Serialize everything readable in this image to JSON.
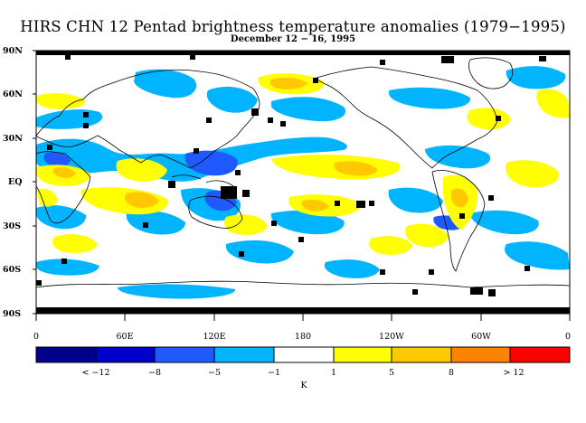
{
  "header": {
    "title": "HIRS CHN 12 Pentad brightness temperature anomalies (1979−1995)",
    "subtitle": "December 12 − 16, 1995"
  },
  "map": {
    "lat_labels": [
      "90N",
      "60N",
      "30N",
      "EQ",
      "30S",
      "60S",
      "90S"
    ],
    "lon_labels": [
      "0",
      "60E",
      "120E",
      "180",
      "120W",
      "60W",
      "0"
    ],
    "colors": {
      "ocean_bg": "#ffffff",
      "coastline": "#000000",
      "missing_data": "#000000"
    }
  },
  "colorbar": {
    "bins": [
      {
        "color": "#00008c"
      },
      {
        "color": "#0000cd"
      },
      {
        "color": "#1e5aff"
      },
      {
        "color": "#00b4ff"
      },
      {
        "color": "#ffffff"
      },
      {
        "color": "#ffff00"
      },
      {
        "color": "#ffc800"
      },
      {
        "color": "#ff8200"
      },
      {
        "color": "#ff0000"
      }
    ],
    "labels": [
      "< −12",
      "−8",
      "−5",
      "−1",
      "1",
      "5",
      "8",
      "> 12"
    ],
    "unit": "K"
  }
}
